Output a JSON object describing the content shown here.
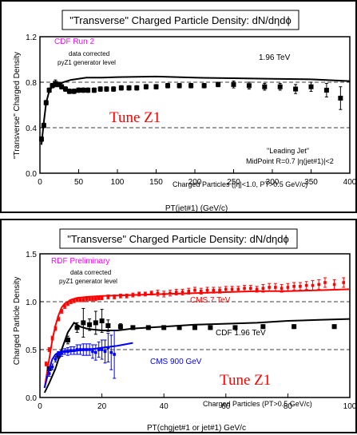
{
  "chart_data": [
    {
      "type": "line",
      "title": "\"Transverse\" Charged Particle Density: dN/dηdϕ",
      "xlabel": "PT(jet#1)  (GeV/c)",
      "ylabel": "\"Transverse\" Charged Density",
      "xlim": [
        0,
        400
      ],
      "ylim": [
        0,
        1.2
      ],
      "xticks": [
        0,
        50,
        100,
        150,
        200,
        250,
        300,
        350,
        400
      ],
      "yticks": [
        0.0,
        0.4,
        0.8,
        1.2
      ],
      "ytick_labels": [
        "0.0",
        "0.4",
        "0.8",
        "1.2"
      ],
      "reference_lines": [
        0.4,
        0.8
      ],
      "annotations": {
        "experiment": "CDF Run 2",
        "corrected_line1": "data corrected",
        "corrected_line2": "pyZ1 generator level",
        "energy": "1.96 TeV",
        "tune": "Tune Z1",
        "leading_jet": "\"Leading Jet\"",
        "midpoint": "MidPoint R=0.7 |η(jet#1)|<2",
        "cuts": "Charged Particles (|η|<1.0, PT>0.5 GeV/c)"
      },
      "series": [
        {
          "type": "scatter",
          "color": "#000000",
          "points": [
            [
              2,
              0.3
            ],
            [
              5,
              0.42
            ],
            [
              8,
              0.62
            ],
            [
              12,
              0.73
            ],
            [
              16,
              0.77
            ],
            [
              20,
              0.79
            ],
            [
              24,
              0.78
            ],
            [
              28,
              0.76
            ],
            [
              33,
              0.74
            ],
            [
              38,
              0.72
            ],
            [
              44,
              0.72
            ],
            [
              50,
              0.73
            ],
            [
              56,
              0.73
            ],
            [
              62,
              0.73
            ],
            [
              70,
              0.73
            ],
            [
              78,
              0.74
            ],
            [
              86,
              0.74
            ],
            [
              95,
              0.74
            ],
            [
              105,
              0.75
            ],
            [
              115,
              0.75
            ],
            [
              125,
              0.75
            ],
            [
              137,
              0.76
            ],
            [
              150,
              0.76
            ],
            [
              165,
              0.77
            ],
            [
              180,
              0.77
            ],
            [
              195,
              0.77
            ],
            [
              212,
              0.77
            ],
            [
              230,
              0.78
            ],
            [
              250,
              0.78
            ],
            [
              270,
              0.77
            ],
            [
              290,
              0.76
            ],
            [
              310,
              0.76
            ],
            [
              330,
              0.74
            ],
            [
              350,
              0.76
            ],
            [
              370,
              0.73
            ],
            [
              388,
              0.66
            ]
          ],
          "errors": [
            0.02,
            0.02,
            0.02,
            0.02,
            0.02,
            0.03,
            0.02,
            0.02,
            0.02,
            0.02,
            0.02,
            0.02,
            0.02,
            0.02,
            0.02,
            0.02,
            0.02,
            0.02,
            0.02,
            0.02,
            0.02,
            0.02,
            0.02,
            0.02,
            0.02,
            0.02,
            0.02,
            0.02,
            0.03,
            0.03,
            0.03,
            0.03,
            0.04,
            0.04,
            0.06,
            0.1
          ]
        },
        {
          "type": "line",
          "color": "#000000",
          "x": [
            2,
            5,
            8,
            12,
            16,
            20,
            25,
            30,
            40,
            60,
            80,
            100,
            150,
            200,
            250,
            300,
            350,
            400
          ],
          "y": [
            0.25,
            0.45,
            0.62,
            0.72,
            0.76,
            0.77,
            0.78,
            0.8,
            0.82,
            0.84,
            0.84,
            0.845,
            0.85,
            0.84,
            0.835,
            0.83,
            0.825,
            0.81
          ]
        }
      ]
    },
    {
      "type": "line",
      "title": "\"Transverse\" Charged Particle Density: dN/dηdϕ",
      "xlabel": "PT(chgjet#1 or jet#1) GeV/c",
      "ylabel": "Charged Particle Density",
      "xlim": [
        0,
        100
      ],
      "ylim": [
        0,
        1.5
      ],
      "xticks": [
        0,
        20,
        40,
        60,
        80,
        100
      ],
      "yticks": [
        0.0,
        0.5,
        1.0,
        1.5
      ],
      "ytick_labels": [
        "0.0",
        "0.5",
        "1.0",
        "1.5"
      ],
      "reference_lines": [
        0.5,
        1.0
      ],
      "annotations": {
        "preliminary": "RDF Preliminary",
        "corrected_line1": "data corrected",
        "corrected_line2": "pyZ1 generator level",
        "cms7_label": "CMS 7 TeV",
        "cdf_label": "CDF 1.96 TeV",
        "cms900_label": "CMS 900 GeV",
        "tune": "Tune Z1",
        "cuts": "Charged Particles (PT>0.5 GeV/c)"
      },
      "series": [
        {
          "type": "scatter",
          "color": "#ff0000",
          "points": [
            [
              2,
              0.35
            ],
            [
              3,
              0.5
            ],
            [
              4,
              0.62
            ],
            [
              5,
              0.72
            ],
            [
              6,
              0.82
            ],
            [
              7,
              0.9
            ],
            [
              8,
              0.95
            ],
            [
              9,
              0.98
            ],
            [
              10,
              1.0
            ],
            [
              11,
              1.01
            ],
            [
              12,
              1.02
            ],
            [
              13,
              1.02
            ],
            [
              14,
              1.02
            ],
            [
              15,
              1.03
            ],
            [
              16,
              1.03
            ],
            [
              17,
              1.03
            ],
            [
              18,
              1.03
            ],
            [
              19,
              1.04
            ],
            [
              20,
              1.04
            ],
            [
              22,
              1.05
            ],
            [
              24,
              1.05
            ],
            [
              26,
              1.06
            ],
            [
              28,
              1.06
            ],
            [
              30,
              1.07
            ],
            [
              32,
              1.08
            ],
            [
              34,
              1.08
            ],
            [
              36,
              1.09
            ],
            [
              38,
              1.09
            ],
            [
              40,
              1.08
            ],
            [
              42,
              1.09
            ],
            [
              44,
              1.1
            ],
            [
              46,
              1.1
            ],
            [
              48,
              1.11
            ],
            [
              50,
              1.12
            ],
            [
              52,
              1.11
            ],
            [
              54,
              1.12
            ],
            [
              56,
              1.12
            ],
            [
              58,
              1.12
            ],
            [
              60,
              1.13
            ],
            [
              62,
              1.13
            ],
            [
              64,
              1.13
            ],
            [
              66,
              1.14
            ],
            [
              68,
              1.14
            ],
            [
              70,
              1.13
            ],
            [
              72,
              1.14
            ],
            [
              74,
              1.15
            ],
            [
              76,
              1.15
            ],
            [
              78,
              1.14
            ],
            [
              80,
              1.15
            ],
            [
              82,
              1.16
            ],
            [
              84,
              1.16
            ],
            [
              86,
              1.17
            ],
            [
              88,
              1.17
            ],
            [
              90,
              1.18
            ],
            [
              92,
              1.2
            ],
            [
              95,
              1.18
            ],
            [
              98,
              1.2
            ]
          ],
          "errors": [
            0.02,
            0.02,
            0.02,
            0.02,
            0.02,
            0.02,
            0.02,
            0.02,
            0.02,
            0.02,
            0.02,
            0.02,
            0.02,
            0.02,
            0.02,
            0.02,
            0.02,
            0.02,
            0.02,
            0.02,
            0.02,
            0.02,
            0.02,
            0.02,
            0.02,
            0.02,
            0.02,
            0.03,
            0.03,
            0.03,
            0.03,
            0.03,
            0.03,
            0.03,
            0.03,
            0.03,
            0.03,
            0.03,
            0.03,
            0.03,
            0.03,
            0.03,
            0.03,
            0.03,
            0.04,
            0.04,
            0.04,
            0.04,
            0.04,
            0.04,
            0.04,
            0.04,
            0.05,
            0.05,
            0.05,
            0.05,
            0.05
          ]
        },
        {
          "type": "line",
          "color": "#ff0000",
          "x": [
            1.5,
            3,
            4,
            5,
            6,
            7,
            8,
            10,
            12,
            15,
            20,
            30,
            40,
            50,
            60,
            70,
            80,
            90,
            100
          ],
          "y": [
            0.1,
            0.4,
            0.6,
            0.75,
            0.86,
            0.94,
            0.98,
            1.02,
            1.04,
            1.05,
            1.06,
            1.07,
            1.08,
            1.09,
            1.1,
            1.11,
            1.11,
            1.12,
            1.13
          ]
        },
        {
          "type": "scatter",
          "color": "#000000",
          "points": [
            [
              3,
              0.3
            ],
            [
              6,
              0.44
            ],
            [
              9,
              0.6
            ],
            [
              12,
              0.73
            ],
            [
              14,
              0.78
            ],
            [
              16,
              0.76
            ],
            [
              18,
              0.78
            ],
            [
              20,
              0.8
            ],
            [
              22,
              0.75
            ],
            [
              26,
              0.74
            ],
            [
              30,
              0.73
            ],
            [
              35,
              0.73
            ],
            [
              40,
              0.73
            ],
            [
              45,
              0.73
            ],
            [
              50,
              0.73
            ],
            [
              55,
              0.73
            ],
            [
              63,
              0.73
            ],
            [
              72,
              0.74
            ],
            [
              82,
              0.74
            ],
            [
              95,
              0.74
            ]
          ],
          "errors": [
            0.02,
            0.03,
            0.04,
            0.05,
            0.15,
            0.06,
            0.12,
            0.12,
            0.06,
            0.03,
            0.02,
            0.02,
            0.02,
            0.02,
            0.02,
            0.02,
            0.02,
            0.02,
            0.02,
            0.02
          ]
        },
        {
          "type": "line",
          "color": "#000000",
          "x": [
            1.5,
            3,
            5,
            7,
            9,
            11,
            13,
            15,
            17,
            20,
            25,
            30,
            40,
            50,
            60,
            70,
            80,
            90,
            100
          ],
          "y": [
            0.05,
            0.15,
            0.3,
            0.5,
            0.68,
            0.78,
            0.74,
            0.72,
            0.71,
            0.7,
            0.7,
            0.72,
            0.74,
            0.76,
            0.77,
            0.78,
            0.8,
            0.81,
            0.82
          ]
        },
        {
          "type": "scatter",
          "color": "#0000ff",
          "points": [
            [
              3,
              0.25
            ],
            [
              4,
              0.32
            ],
            [
              5,
              0.4
            ],
            [
              6,
              0.45
            ],
            [
              7,
              0.46
            ],
            [
              8,
              0.48
            ],
            [
              9,
              0.48
            ],
            [
              10,
              0.49
            ],
            [
              11,
              0.49
            ],
            [
              12,
              0.5
            ],
            [
              13,
              0.5
            ],
            [
              14,
              0.5
            ],
            [
              15,
              0.5
            ],
            [
              16,
              0.5
            ],
            [
              17,
              0.48
            ],
            [
              18,
              0.47
            ],
            [
              19,
              0.5
            ],
            [
              20,
              0.5
            ],
            [
              21,
              0.48
            ],
            [
              22,
              0.52
            ],
            [
              23,
              0.47
            ],
            [
              24,
              0.45
            ]
          ],
          "errors": [
            0.03,
            0.03,
            0.03,
            0.03,
            0.03,
            0.03,
            0.04,
            0.04,
            0.04,
            0.05,
            0.05,
            0.06,
            0.06,
            0.06,
            0.07,
            0.08,
            0.08,
            0.1,
            0.12,
            0.15,
            0.18,
            0.25
          ]
        },
        {
          "type": "line",
          "color": "#0000ff",
          "x": [
            1.5,
            3,
            4,
            5,
            6,
            8,
            10,
            12,
            15,
            18,
            20,
            25,
            30
          ],
          "y": [
            0.1,
            0.3,
            0.4,
            0.45,
            0.47,
            0.48,
            0.48,
            0.49,
            0.5,
            0.51,
            0.52,
            0.54,
            0.57
          ]
        }
      ]
    }
  ]
}
